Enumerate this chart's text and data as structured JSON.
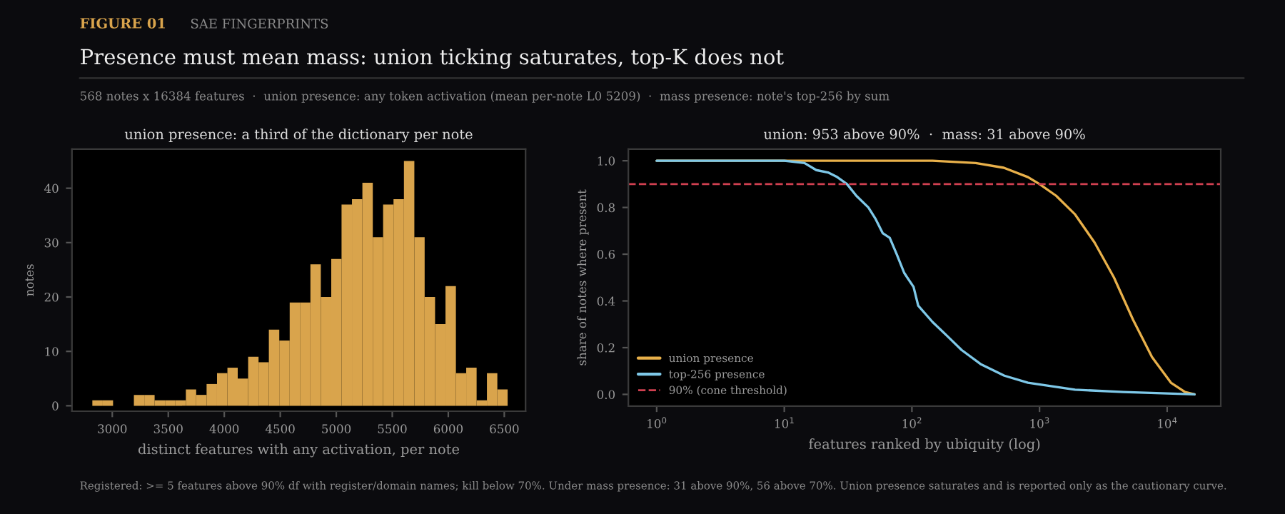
{
  "chart_data": [
    {
      "type": "other",
      "title": "Presence must mean mass: union ticking saturates, top-K does not",
      "subtitle": "568 notes x 16384 features  ·  union presence: any token activation (mean per-note L0 5209)  ·  mass presence: note's top-256 by sum",
      "annotations": [
        "FIGURE 01",
        "SAE FINGERPRINTS",
        "Registered: >= 5 features above 90% df with register/domain names; kill below 70%. Under mass presence: 31 above 90%, 56 above 70%. Union presence saturates and is reported only as the cautionary curve."
      ]
    },
    {
      "type": "histogram",
      "title": "union presence: a third of the dictionary per note",
      "xlabel": "distinct features with any activation, per note",
      "ylabel": "notes",
      "color": "#d9a44c",
      "bins": [
        2822,
        2915,
        3007,
        3100,
        3193,
        3286,
        3378,
        3471,
        3564,
        3657,
        3749,
        3842,
        3935,
        4028,
        4120,
        4213,
        4306,
        4398,
        4491,
        4584,
        4676,
        4769,
        4862,
        4955,
        5047,
        5140,
        5233,
        5326,
        5418,
        5511,
        5604,
        5697,
        5789,
        5882,
        5975,
        6068,
        6160,
        6253,
        6345,
        6438,
        6530
      ],
      "values": [
        1,
        1,
        0,
        0,
        2,
        2,
        1,
        1,
        1,
        3,
        2,
        4,
        6,
        7,
        5,
        9,
        8,
        14,
        12,
        19,
        19,
        26,
        20,
        27,
        37,
        38,
        41,
        31,
        37,
        38,
        45,
        31,
        20,
        15,
        22,
        6,
        7,
        1,
        6,
        3
      ],
      "xlim": [
        2640,
        6690
      ],
      "ylim": [
        -1,
        47.2
      ],
      "xticks": [
        3000,
        3500,
        4000,
        4500,
        5000,
        5500,
        6000,
        6500
      ],
      "yticks": [
        0,
        10,
        20,
        30,
        40
      ],
      "grid": false
    },
    {
      "type": "line",
      "title": "union: 953 above 90%  ·  mass: 31 above 90%",
      "xlabel": "features ranked by ubiquity (log)",
      "ylabel": "share of notes where present",
      "log": "x",
      "xlim": [
        0.6,
        26300
      ],
      "ylim": [
        -0.05,
        1.05
      ],
      "xticks": [
        {
          "value": 1,
          "label": "10$^{0}$"
        },
        {
          "value": 10,
          "label": "10$^{1}$"
        },
        {
          "value": 100,
          "label": "10$^{2}$"
        },
        {
          "value": 1000,
          "label": "10$^{3}$"
        },
        {
          "value": 10000,
          "label": "10$^{4}$"
        }
      ],
      "yticks": [
        {
          "value": 0,
          "label": "0.0"
        },
        0.2,
        0.4,
        0.6,
        0.8,
        {
          "value": 1,
          "label": "1.0"
        }
      ],
      "series": [
        {
          "name": "union presence",
          "color": "#e8b04a",
          "x": [
            1,
            10,
            145,
            316,
            525,
            812,
            1000,
            1350,
            1900,
            2700,
            3830,
            5400,
            7600,
            10700,
            13800,
            16384
          ],
          "values": [
            1.0,
            1.0,
            1.0,
            0.99,
            0.97,
            0.93,
            0.9,
            0.85,
            0.77,
            0.65,
            0.5,
            0.32,
            0.16,
            0.05,
            0.01,
            0.0
          ]
        },
        {
          "name": "top-256 presence",
          "color": "#7ec8e8",
          "x": [
            1,
            10,
            14.4,
            17.8,
            22,
            26,
            31,
            36.7,
            45.6,
            52,
            59,
            67,
            76,
            87,
            103,
            112,
            145,
            189,
            245,
            345,
            530,
            812,
            1900,
            4550,
            16384
          ],
          "values": [
            1.0,
            1.0,
            0.99,
            0.96,
            0.95,
            0.93,
            0.9,
            0.85,
            0.8,
            0.75,
            0.69,
            0.67,
            0.6,
            0.52,
            0.46,
            0.38,
            0.31,
            0.25,
            0.19,
            0.13,
            0.08,
            0.05,
            0.02,
            0.01,
            0.0
          ]
        }
      ],
      "ref_lines": [
        {
          "axis": "y",
          "value": 0.9,
          "label": "90% (cone threshold)",
          "color": "#d04050",
          "line_style": "dashed"
        }
      ],
      "legend": "lower left",
      "grid": false
    }
  ]
}
